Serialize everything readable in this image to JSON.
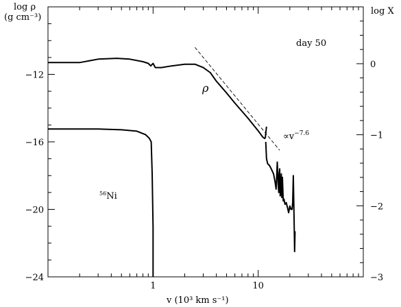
{
  "chart_data": {
    "type": "line",
    "x_scale": "log",
    "xlim": [
      0.1,
      100
    ],
    "ylim_left": [
      -24,
      -8
    ],
    "ylim_right": [
      -3,
      0.8
    ],
    "xlabel": "v (10³ km s⁻¹)",
    "ylabel_left_line1": "log ρ",
    "ylabel_left_line2": "(g cm⁻³)",
    "ylabel_right": "log X",
    "x_ticks": [
      {
        "value": 1,
        "label": "1"
      },
      {
        "value": 10,
        "label": "10"
      }
    ],
    "y_ticks_left": [
      {
        "value": -12,
        "label": "−12"
      },
      {
        "value": -16,
        "label": "−16"
      },
      {
        "value": -20,
        "label": "−20"
      },
      {
        "value": -24,
        "label": "−24"
      }
    ],
    "y_ticks_right": [
      {
        "value": 0,
        "label": "0"
      },
      {
        "value": -1,
        "label": "−1"
      },
      {
        "value": -2,
        "label": "−2"
      },
      {
        "value": -3,
        "label": "−3"
      }
    ],
    "grid": false,
    "annotations": {
      "day": "day 50",
      "rho": "ρ",
      "powerlaw_prefix": "∝v",
      "powerlaw_exponent": "−7.6",
      "nickel_mass": "56",
      "nickel_element": "Ni"
    },
    "series": [
      {
        "axis": "left",
        "style": "solid",
        "x": [
          0.1,
          0.2,
          0.3,
          0.45,
          0.6,
          0.8,
          0.9,
          0.95,
          1.0,
          1.05,
          1.2,
          1.5,
          2.0,
          2.5,
          3.0,
          3.5,
          4.0,
          5.0,
          6.0,
          8.0,
          10.0,
          11.0,
          11.5,
          11.7,
          11.8,
          12.0
        ],
        "y": [
          -11.3,
          -11.3,
          -11.1,
          -11.05,
          -11.1,
          -11.25,
          -11.35,
          -11.5,
          -11.35,
          -11.6,
          -11.6,
          -11.5,
          -11.4,
          -11.4,
          -11.6,
          -11.9,
          -12.4,
          -13.1,
          -13.7,
          -14.6,
          -15.35,
          -15.7,
          -15.8,
          -15.75,
          -15.5,
          -15.1
        ]
      },
      {
        "axis": "left",
        "style": "solid",
        "x": [
          11.8,
          12.0,
          12.3,
          12.8,
          13.3,
          14.0,
          14.5,
          14.8,
          15.0,
          15.2,
          15.5,
          15.7,
          15.8,
          16.0,
          16.2,
          16.4,
          16.6,
          16.8,
          17.0,
          17.3,
          17.6,
          18.0,
          18.5,
          19.0,
          19.5,
          20.0,
          20.5,
          21.0,
          21.3,
          21.6,
          22.0,
          22.2,
          22.4
        ],
        "y": [
          -16.0,
          -17.0,
          -17.3,
          -17.4,
          -17.6,
          -17.9,
          -18.4,
          -18.8,
          -18.0,
          -17.2,
          -18.6,
          -19.0,
          -18.0,
          -17.6,
          -19.2,
          -19.0,
          -17.9,
          -19.3,
          -18.1,
          -19.5,
          -19.4,
          -19.7,
          -19.6,
          -19.9,
          -20.2,
          -19.8,
          -20.0,
          -20.0,
          -19.6,
          -18.0,
          -21.0,
          -22.5,
          -21.3
        ]
      },
      {
        "axis": "left",
        "style": "dashed",
        "x": [
          2.5,
          16.0
        ],
        "y": [
          -10.4,
          -16.5
        ]
      },
      {
        "axis": "right",
        "style": "solid",
        "x": [
          0.1,
          0.3,
          0.5,
          0.7,
          0.85,
          0.92,
          0.96,
          0.98,
          1.0,
          1.0
        ],
        "y": [
          -0.92,
          -0.92,
          -0.93,
          -0.95,
          -1.0,
          -1.05,
          -1.1,
          -1.55,
          -2.3,
          -3.0
        ]
      }
    ]
  }
}
